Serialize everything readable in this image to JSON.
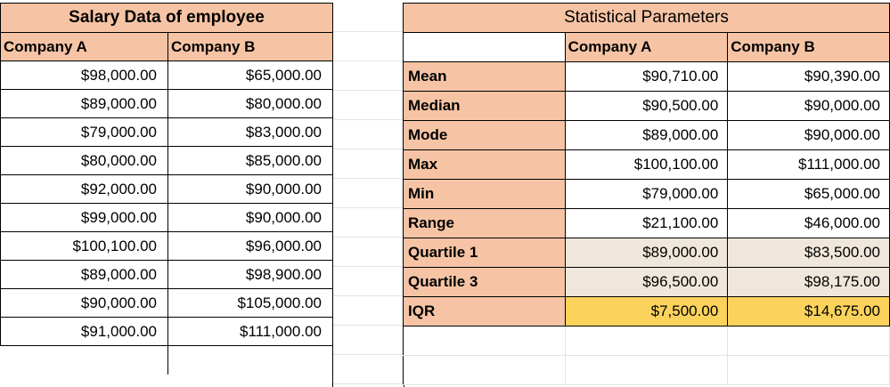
{
  "salary_table": {
    "title": "Salary Data of employee",
    "col_a": "Company A",
    "col_b": "Company B",
    "rows": [
      [
        "$98,000.00",
        "$65,000.00"
      ],
      [
        "$89,000.00",
        "$80,000.00"
      ],
      [
        "$79,000.00",
        "$83,000.00"
      ],
      [
        "$80,000.00",
        "$85,000.00"
      ],
      [
        "$92,000.00",
        "$90,000.00"
      ],
      [
        "$99,000.00",
        "$90,000.00"
      ],
      [
        "$100,100.00",
        "$96,000.00"
      ],
      [
        "$89,000.00",
        "$98,900.00"
      ],
      [
        "$90,000.00",
        "$105,000.00"
      ],
      [
        "$91,000.00",
        "$111,000.00"
      ]
    ]
  },
  "stats_table": {
    "title": "Statistical Parameters",
    "col_a": "Company A",
    "col_b": "Company B",
    "rows": [
      [
        "Mean",
        "$90,710.00",
        "$90,390.00"
      ],
      [
        "Median",
        "$90,500.00",
        "$90,000.00"
      ],
      [
        "Mode",
        "$89,000.00",
        "$90,000.00"
      ],
      [
        "Max",
        "$100,100.00",
        "$111,000.00"
      ],
      [
        "Min",
        "$79,000.00",
        "$65,000.00"
      ],
      [
        "Range",
        "$21,100.00",
        "$46,000.00"
      ],
      [
        "Quartile 1",
        "$89,000.00",
        "$83,500.00"
      ],
      [
        "Quartile 3",
        "$96,500.00",
        "$98,175.00"
      ],
      [
        "IQR",
        "$7,500.00",
        "$14,675.00"
      ]
    ]
  },
  "colors": {
    "header_fill": "#f6c4a5",
    "quartile_fill": "#efe7db",
    "iqr_fill": "#fbd35c"
  }
}
